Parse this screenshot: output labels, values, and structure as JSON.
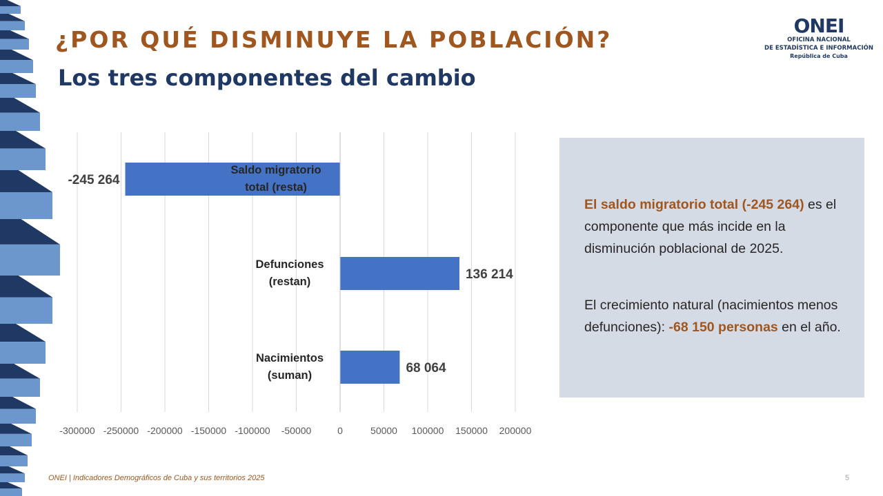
{
  "slide": {
    "title": "¿POR QUÉ DISMINUYE LA POBLACIÓN?",
    "subtitle": "Los tres componentes del cambio"
  },
  "logo": {
    "mark": "ONEI",
    "line1": "OFICINA NACIONAL",
    "line2": "DE ESTADÍSTICA E INFORMACIÓN",
    "line3": "República de Cuba"
  },
  "colors": {
    "accent": "#a0561f",
    "navy": "#1f3864",
    "bar": "#4472c4",
    "panel": "#d5dbe5"
  },
  "chart_data": {
    "type": "bar",
    "orientation": "horizontal",
    "categories": [
      [
        "Saldo migratorio",
        "total (resta)"
      ],
      [
        "Defunciones",
        "(restan)"
      ],
      [
        "Nacimientos",
        "(suman)"
      ]
    ],
    "values": [
      -245264,
      136214,
      68064
    ],
    "value_labels": [
      "-245 264",
      "136 214",
      "68 064"
    ],
    "xlim": [
      -300000,
      200000
    ],
    "xticks": [
      -300000,
      -250000,
      -200000,
      -150000,
      -100000,
      -50000,
      0,
      50000,
      100000,
      150000,
      200000
    ],
    "grid": "vertical",
    "color": "#4472c4",
    "title": "",
    "xlabel": "",
    "ylabel": ""
  },
  "info": {
    "p1_highlight": "El saldo migratorio total (-245 264)",
    "p1_text": " es el componente que más incide en la disminución poblacional de 2025.",
    "p2_pre": "El crecimiento natural (nacimientos menos defunciones): ",
    "p2_highlight": "-68 150 personas",
    "p2_post": " en el año."
  },
  "footer": {
    "text": "ONEI  |  Indicadores Demográficos de Cuba y sus territorios 2025",
    "page_number": "5"
  }
}
